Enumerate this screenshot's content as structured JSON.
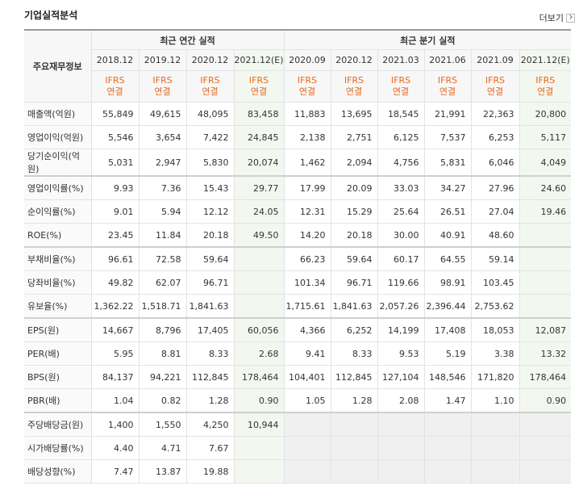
{
  "header": {
    "title": "기업실적분석",
    "more": "더보기"
  },
  "table": {
    "corner": "주요재무정보",
    "groups": [
      {
        "label": "최근 연간 실적",
        "columns": [
          {
            "period": "2018.12",
            "standard": "IFRS",
            "basis": "연결"
          },
          {
            "period": "2019.12",
            "standard": "IFRS",
            "basis": "연결"
          },
          {
            "period": "2020.12",
            "standard": "IFRS",
            "basis": "연결"
          },
          {
            "period": "2021.12(E)",
            "standard": "IFRS",
            "basis": "연결"
          }
        ]
      },
      {
        "label": "최근 분기 실적",
        "columns": [
          {
            "period": "2020.09",
            "standard": "IFRS",
            "basis": "연결"
          },
          {
            "period": "2020.12",
            "standard": "IFRS",
            "basis": "연결"
          },
          {
            "period": "2021.03",
            "standard": "IFRS",
            "basis": "연결"
          },
          {
            "period": "2021.06",
            "standard": "IFRS",
            "basis": "연결"
          },
          {
            "period": "2021.09",
            "standard": "IFRS",
            "basis": "연결"
          },
          {
            "period": "2021.12(E)",
            "standard": "IFRS",
            "basis": "연결"
          }
        ]
      }
    ],
    "sections": [
      [
        {
          "label": "매출액(억원)",
          "values": [
            "55,849",
            "49,615",
            "48,095",
            "83,458",
            "11,883",
            "13,695",
            "18,545",
            "21,991",
            "22,363",
            "20,800"
          ]
        },
        {
          "label": "영업이익(억원)",
          "values": [
            "5,546",
            "3,654",
            "7,422",
            "24,845",
            "2,138",
            "2,751",
            "6,125",
            "7,537",
            "6,253",
            "5,117"
          ]
        },
        {
          "label": "당기순이익(억원)",
          "values": [
            "5,031",
            "2,947",
            "5,830",
            "20,074",
            "1,462",
            "2,094",
            "4,756",
            "5,831",
            "6,046",
            "4,049"
          ]
        }
      ],
      [
        {
          "label": "영업이익률(%)",
          "values": [
            "9.93",
            "7.36",
            "15.43",
            "29.77",
            "17.99",
            "20.09",
            "33.03",
            "34.27",
            "27.96",
            "24.60"
          ]
        },
        {
          "label": "순이익률(%)",
          "values": [
            "9.01",
            "5.94",
            "12.12",
            "24.05",
            "12.31",
            "15.29",
            "25.64",
            "26.51",
            "27.04",
            "19.46"
          ]
        },
        {
          "label": "ROE(%)",
          "values": [
            "23.45",
            "11.84",
            "20.18",
            "49.50",
            "14.20",
            "20.18",
            "30.00",
            "40.91",
            "48.60",
            null
          ]
        }
      ],
      [
        {
          "label": "부채비율(%)",
          "values": [
            "96.61",
            "72.58",
            "59.64",
            null,
            "66.23",
            "59.64",
            "60.17",
            "64.55",
            "59.14",
            null
          ]
        },
        {
          "label": "당좌비율(%)",
          "values": [
            "49.82",
            "62.07",
            "96.71",
            null,
            "101.34",
            "96.71",
            "119.66",
            "98.91",
            "103.45",
            null
          ]
        },
        {
          "label": "유보율(%)",
          "values": [
            "1,362.22",
            "1,518.71",
            "1,841.63",
            null,
            "1,715.61",
            "1,841.63",
            "2,057.26",
            "2,396.44",
            "2,753.62",
            null
          ]
        }
      ],
      [
        {
          "label": "EPS(원)",
          "values": [
            "14,667",
            "8,796",
            "17,405",
            "60,056",
            "4,366",
            "6,252",
            "14,199",
            "17,408",
            "18,053",
            "12,087"
          ]
        },
        {
          "label": "PER(배)",
          "values": [
            "5.95",
            "8.81",
            "8.33",
            "2.68",
            "9.41",
            "8.33",
            "9.53",
            "5.19",
            "3.38",
            "13.32"
          ]
        },
        {
          "label": "BPS(원)",
          "values": [
            "84,137",
            "94,221",
            "112,845",
            "178,464",
            "104,401",
            "112,845",
            "127,104",
            "148,546",
            "171,820",
            "178,464"
          ]
        },
        {
          "label": "PBR(배)",
          "values": [
            "1.04",
            "0.82",
            "1.28",
            "0.90",
            "1.05",
            "1.28",
            "2.08",
            "1.47",
            "1.10",
            "0.90"
          ]
        }
      ],
      [
        {
          "label": "주당배당금(원)",
          "values": [
            "1,400",
            "1,550",
            "4,250",
            "10,944",
            null,
            null,
            null,
            null,
            null,
            null
          ]
        },
        {
          "label": "시가배당률(%)",
          "values": [
            "4.40",
            "4.71",
            "7.67",
            null,
            null,
            null,
            null,
            null,
            null,
            null
          ]
        },
        {
          "label": "배당성향(%)",
          "values": [
            "7.47",
            "13.87",
            "19.88",
            null,
            null,
            null,
            null,
            null,
            null,
            null
          ]
        }
      ]
    ]
  }
}
